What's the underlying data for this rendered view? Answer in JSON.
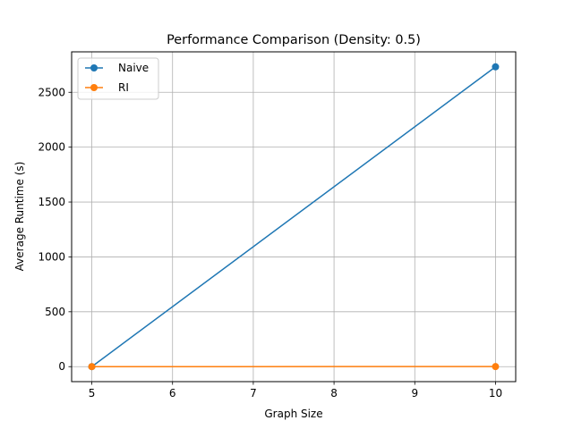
{
  "chart_data": {
    "type": "line",
    "title": "Performance Comparison (Density: 0.5)",
    "xlabel": "Graph Size",
    "ylabel": "Average Runtime (s)",
    "x": [
      5,
      10
    ],
    "xlim": [
      4.75,
      10.25
    ],
    "ylim": [
      -136.6,
      2868.6
    ],
    "xticks": [
      5,
      6,
      7,
      8,
      9,
      10
    ],
    "yticks": [
      0,
      500,
      1000,
      1500,
      2000,
      2500
    ],
    "grid": true,
    "legend_position": "upper-left",
    "series": [
      {
        "name": "Naive",
        "values": [
          0.1,
          2732
        ],
        "color": "#1f77b4",
        "marker": "circle"
      },
      {
        "name": "RI",
        "values": [
          0.1,
          0.5
        ],
        "color": "#ff7f0e",
        "marker": "circle"
      }
    ]
  }
}
